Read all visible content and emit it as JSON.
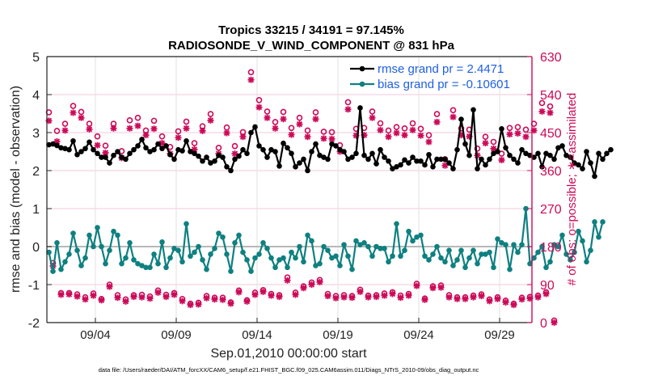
{
  "chart_data": {
    "type": "line",
    "title": "Tropics 33215 / 34191 = 97.145%",
    "subtitle": "RADIOSONDE_V_WIND_COMPONENT @ 831 hPa",
    "xlabel": "Sep.01,2010 00:00:00 start",
    "ylabel": "rmse and bias (model - observation)",
    "ylabel_right": "# of obs: o=possible; ∗=assimilated",
    "footnote": "data file: /Users/raeder/DAI/ATM_forcXX/CAM6_setup/f.e21.FHIST_BGC.f09_025.CAM6assim.011/Diags_NTrS_2010-09/obs_diag_output.nc",
    "xlim_days": [
      0,
      30
    ],
    "ylim": [
      -2,
      5
    ],
    "ylim_right": [
      0,
      630
    ],
    "x_ticks": [
      {
        "day": 3,
        "label": "09/04"
      },
      {
        "day": 8,
        "label": "09/09"
      },
      {
        "day": 13,
        "label": "09/14"
      },
      {
        "day": 18,
        "label": "09/19"
      },
      {
        "day": 23,
        "label": "09/24"
      },
      {
        "day": 28,
        "label": "09/29"
      }
    ],
    "y_ticks": [
      -2,
      -1,
      0,
      1,
      2,
      3,
      4,
      5
    ],
    "y_ticks_right": [
      0,
      90,
      180,
      270,
      360,
      450,
      540,
      630
    ],
    "grid": "horizontal",
    "legend": {
      "placement": "top-right",
      "entries": [
        {
          "label": "rmse grand pr = 2.4471",
          "color": "#000000"
        },
        {
          "label": "bias grand pr = -0.10601",
          "color": "#0f8080"
        }
      ]
    },
    "colors": {
      "rmse": "#000000",
      "bias": "#0f8080",
      "obs": "#cc0a58",
      "zero_line": "#b8b8b8",
      "grid": "#f0c8d8"
    },
    "x_step_days": 0.25,
    "series": [
      {
        "name": "rmse",
        "values": [
          2.68,
          2.7,
          2.66,
          2.6,
          2.58,
          2.55,
          2.78,
          2.42,
          2.5,
          2.58,
          2.75,
          2.55,
          2.45,
          2.35,
          2.35,
          2.2,
          2.4,
          2.5,
          2.35,
          2.3,
          2.45,
          2.55,
          2.65,
          2.82,
          2.6,
          2.5,
          2.55,
          2.7,
          2.58,
          2.65,
          2.42,
          2.3,
          2.55,
          2.52,
          2.78,
          2.5,
          2.45,
          2.38,
          2.25,
          2.35,
          2.2,
          2.25,
          2.4,
          2.35,
          2.1,
          2.0,
          2.3,
          2.38,
          2.55,
          2.45,
          3.0,
          3.15,
          2.65,
          2.55,
          2.35,
          2.55,
          2.5,
          2.12,
          2.72,
          2.6,
          2.45,
          2.1,
          2.2,
          2.3,
          2.0,
          2.5,
          2.7,
          2.4,
          2.35,
          2.3,
          2.7,
          2.65,
          2.55,
          2.5,
          2.3,
          2.35,
          2.45,
          3.65,
          2.4,
          2.3,
          2.45,
          2.18,
          2.55,
          2.35,
          2.25,
          2.05,
          2.1,
          2.15,
          2.28,
          2.2,
          2.35,
          2.25,
          2.25,
          2.15,
          2.42,
          2.1,
          2.3,
          2.3,
          2.3,
          2.2,
          2.05,
          2.55,
          3.35,
          2.7,
          2.4,
          3.6,
          2.05,
          2.3,
          2.15,
          2.3,
          2.45,
          2.5,
          3.1,
          2.6,
          2.4,
          2.3,
          2.2,
          2.55,
          2.45,
          2.4,
          2.35,
          2.45,
          2.1,
          2.45,
          2.4,
          2.3,
          2.6,
          2.65,
          2.4,
          2.35,
          2.2,
          2.15,
          2.05,
          2.5,
          2.2,
          1.85,
          2.45,
          2.3,
          2.45,
          2.55
        ]
      },
      {
        "name": "bias",
        "values": [
          -0.15,
          -0.65,
          0.1,
          -0.6,
          -0.4,
          -0.2,
          0.35,
          -0.1,
          -0.5,
          -0.3,
          0.3,
          0.0,
          0.5,
          0.0,
          -0.45,
          -0.1,
          0.4,
          0.3,
          -0.45,
          -0.3,
          0.1,
          -0.35,
          -0.45,
          -0.5,
          -0.55,
          -0.55,
          -0.2,
          -0.45,
          0.12,
          -0.55,
          -0.3,
          -0.05,
          -0.1,
          -0.4,
          0.6,
          -0.25,
          -0.15,
          0.0,
          -0.35,
          -0.6,
          -0.2,
          -0.05,
          0.35,
          0.25,
          -0.2,
          -0.65,
          0.1,
          0.3,
          -0.15,
          -0.35,
          -0.65,
          -0.3,
          -0.2,
          0.1,
          -0.05,
          -0.3,
          -0.55,
          -0.35,
          -0.3,
          -0.55,
          -0.15,
          -0.3,
          0.0,
          -0.4,
          0.3,
          0.15,
          -0.5,
          -0.45,
          0.0,
          -0.1,
          -0.3,
          -0.25,
          -0.5,
          0.05,
          -0.25,
          -0.6,
          0.15,
          0.05,
          0.1,
          0.0,
          -0.25,
          0.0,
          -0.05,
          -0.05,
          -0.4,
          -0.25,
          0.6,
          -0.25,
          -0.1,
          0.4,
          0.15,
          0.25,
          0.3,
          -0.25,
          -0.35,
          -0.2,
          0.0,
          -0.3,
          -0.4,
          -0.1,
          -0.5,
          -0.35,
          -0.1,
          -0.55,
          -0.3,
          -0.1,
          -0.45,
          -0.2,
          -0.2,
          -0.15,
          -0.55,
          0.2,
          0.1,
          0.05,
          -0.6,
          0.05,
          -0.15,
          0.05,
          1.0,
          -0.45,
          -0.3,
          -0.15,
          0.0,
          -0.55,
          -0.4,
          0.05,
          0.0,
          0.3,
          -0.2,
          -0.35,
          -0.15,
          0.4,
          0.15,
          -0.4,
          -0.1,
          0.65,
          0.25,
          0.65
        ]
      },
      {
        "name": "obs_possible",
        "axis": "right",
        "values": [
          498,
          141,
          454,
          70,
          471,
          70,
          513,
          67,
          499,
          60,
          471,
          69,
          441,
          56,
          419,
          90,
          471,
          65,
          406,
          55,
          479,
          65,
          485,
          66,
          455,
          62,
          478,
          76,
          441,
          66,
          416,
          70,
          453,
          56,
          476,
          45,
          425,
          47,
          465,
          63,
          494,
          59,
          414,
          59,
          462,
          48,
          418,
          76,
          451,
          53,
          593,
          71,
          527,
          77,
          500,
          68,
          475,
          65,
          499,
          107,
          461,
          71,
          485,
          86,
          455,
          95,
          498,
          101,
          452,
          68,
          451,
          63,
          420,
          65,
          522,
          63,
          459,
          78,
          461,
          64,
          500,
          65,
          472,
          69,
          455,
          72,
          463,
          64,
          460,
          68,
          472,
          92,
          459,
          57,
          444,
          86,
          494,
          88,
          387,
          65,
          503,
          60,
          460,
          60,
          457,
          64,
          412,
          67,
          440,
          55,
          428,
          60,
          400,
          52,
          461,
          45,
          463,
          59,
          457,
          61,
          471,
          64,
          520,
          72,
          512,
          5
        ]
      },
      {
        "name": "obs_assimilated",
        "axis": "right",
        "values": [
          478,
          134,
          429,
          66,
          455,
          67,
          497,
          62,
          485,
          55,
          458,
          64,
          420,
          53,
          402,
          85,
          460,
          59,
          390,
          50,
          460,
          61,
          466,
          60,
          444,
          57,
          459,
          71,
          425,
          61,
          400,
          66,
          438,
          51,
          460,
          42,
          410,
          43,
          454,
          58,
          479,
          55,
          400,
          54,
          449,
          45,
          400,
          72,
          440,
          50,
          575,
          66,
          510,
          73,
          485,
          64,
          460,
          61,
          482,
          100,
          445,
          66,
          470,
          82,
          440,
          90,
          482,
          96,
          436,
          63,
          435,
          58,
          405,
          60,
          505,
          59,
          443,
          73,
          444,
          60,
          485,
          61,
          456,
          64,
          440,
          68,
          449,
          59,
          444,
          64,
          456,
          87,
          443,
          54,
          428,
          82,
          475,
          83,
          372,
          60,
          487,
          56,
          444,
          56,
          441,
          60,
          396,
          63,
          425,
          51,
          412,
          56,
          385,
          48,
          446,
          42,
          448,
          55,
          440,
          57,
          455,
          60,
          500,
          68,
          497,
          0
        ]
      }
    ]
  }
}
